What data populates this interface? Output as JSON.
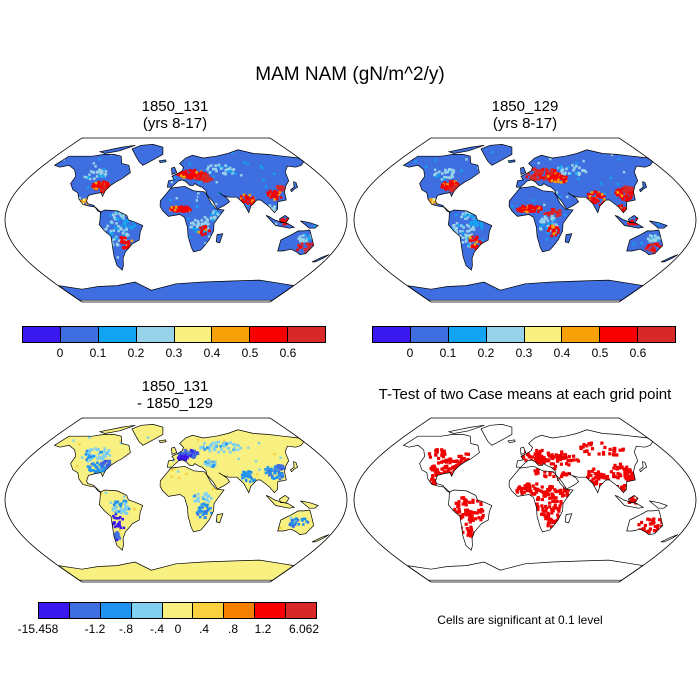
{
  "title": "MAM NAM (gN/m^2/y)",
  "panels": [
    {
      "id": "p1",
      "title_line1": "1850_131",
      "title_line2": "(yrs 8-17)",
      "type": "field",
      "scheme": "abs"
    },
    {
      "id": "p2",
      "title_line1": "1850_129",
      "title_line2": "(yrs 8-17)",
      "type": "field",
      "scheme": "abs2"
    },
    {
      "id": "p3",
      "title_line1": "1850_131",
      "title_line2": "- 1850_129",
      "type": "difference",
      "scheme": "diff"
    },
    {
      "id": "p4",
      "title_line1": "T-Test of two Case means at each grid point",
      "title_line2": "",
      "type": "significance",
      "scheme": "sig"
    }
  ],
  "colorbars": {
    "absolute": {
      "colors": [
        "#3a19f0",
        "#3e6ee0",
        "#12a4f0",
        "#98d2e8",
        "#f8f080",
        "#f8a008",
        "#f80000",
        "#d82828"
      ],
      "labels": [
        "0",
        "0.1",
        "0.2",
        "0.3",
        "0.4",
        "0.5",
        "0.6"
      ]
    },
    "difference": {
      "colors": [
        "#3a19f0",
        "#3e6ee0",
        "#2094f0",
        "#82d0f0",
        "#f8f080",
        "#f8d040",
        "#f88000",
        "#f80000",
        "#d82828"
      ],
      "labels": [
        "-15.458",
        "-1.2",
        "-.8",
        "-.4",
        "0",
        ".4",
        ".8",
        "1.2",
        "6.062"
      ]
    }
  },
  "significance_note": "Cells are significant at 0.1 level",
  "colors": {
    "map_outline": "#000000",
    "ocean": "#ffffff",
    "significant": "#f00000"
  }
}
